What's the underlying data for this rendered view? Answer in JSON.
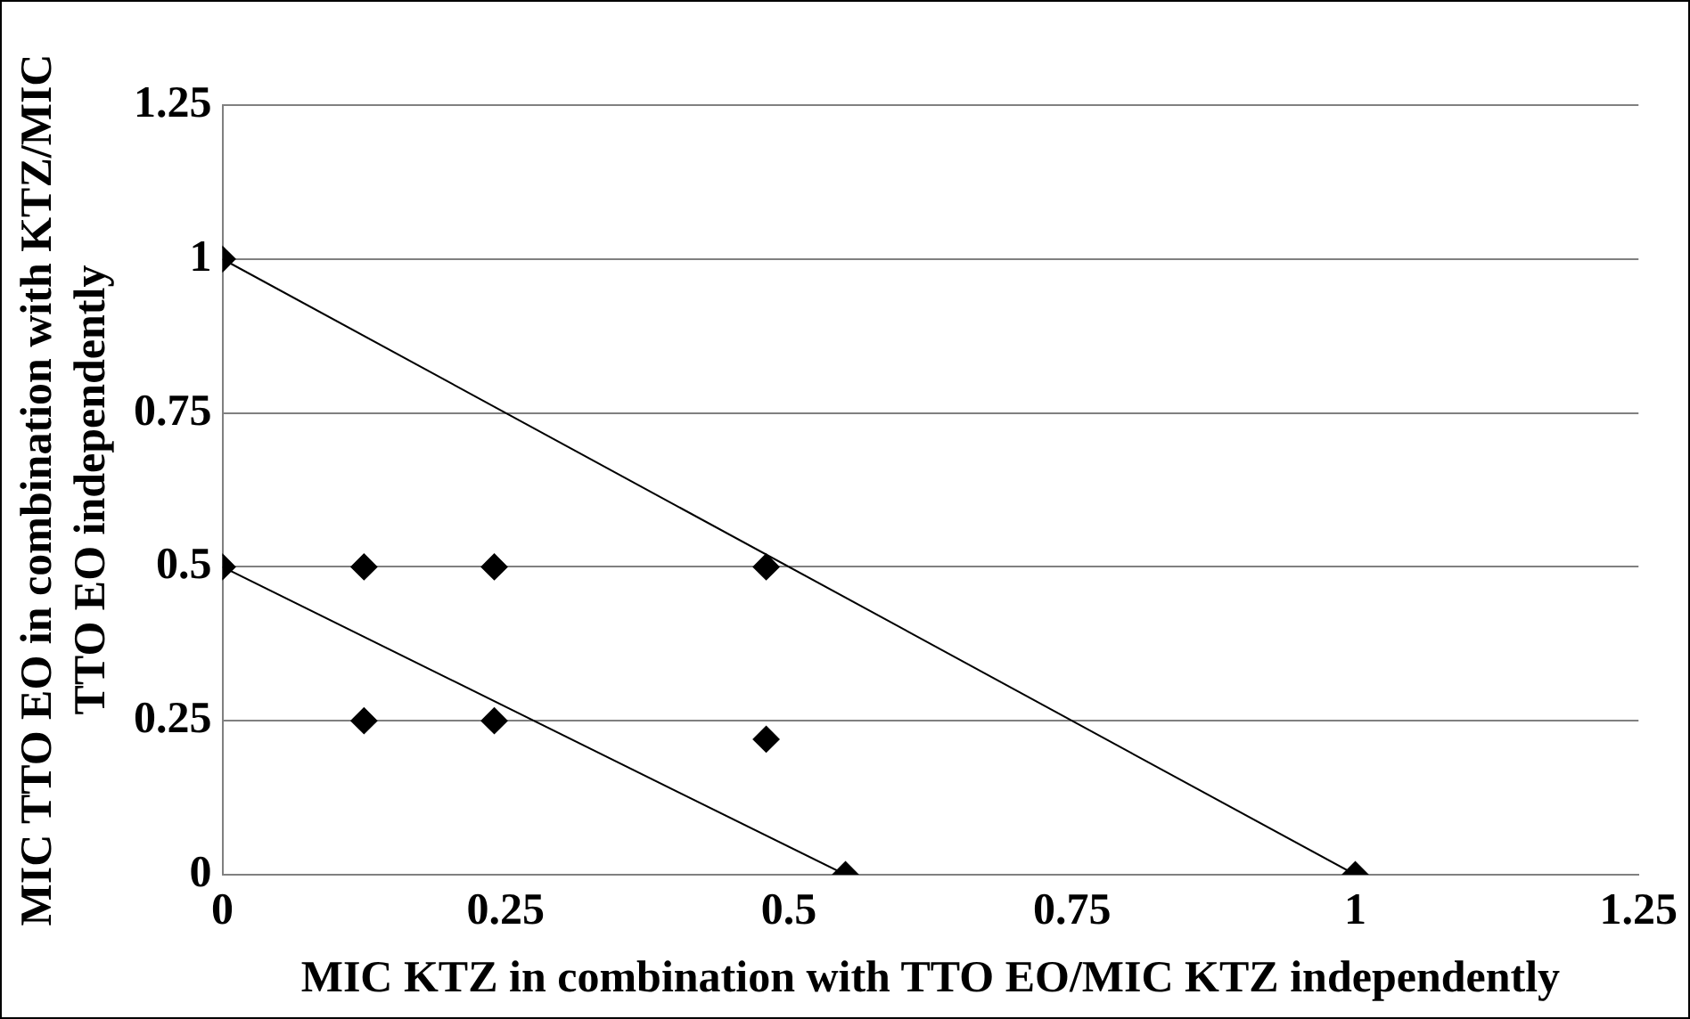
{
  "chart_data": {
    "type": "scatter",
    "xlabel": "MIC KTZ in combination with TTO EO/MIC KTZ independently",
    "ylabel": "MIC TTO EO in combination with KTZ/MIC TTO EO independently",
    "series": [
      {
        "color": "#000000",
        "marker": "diamond",
        "x": [
          0,
          0,
          0.125,
          0.24,
          0.48,
          0.125,
          0.24,
          0.48,
          0.55,
          1
        ],
        "values": [
          1,
          0.5,
          0.5,
          0.5,
          0.5,
          0.25,
          0.25,
          0.22,
          0,
          0
        ]
      },
      {
        "type": "line",
        "color": "#000000",
        "marker": "none",
        "x": [
          0,
          1
        ],
        "values": [
          1,
          0
        ]
      },
      {
        "type": "line",
        "color": "#000000",
        "marker": "none",
        "x": [
          0,
          0.55
        ],
        "values": [
          0.5,
          0
        ]
      }
    ],
    "xlim": [
      0,
      1.25
    ],
    "xticks": [
      0,
      0.25,
      0.5,
      0.75,
      1,
      1.25
    ],
    "ylim": [
      0,
      1.25
    ],
    "yticks": [
      0,
      0.25,
      0.5,
      0.75,
      1,
      1.25
    ],
    "grid": "y",
    "legend": false
  }
}
